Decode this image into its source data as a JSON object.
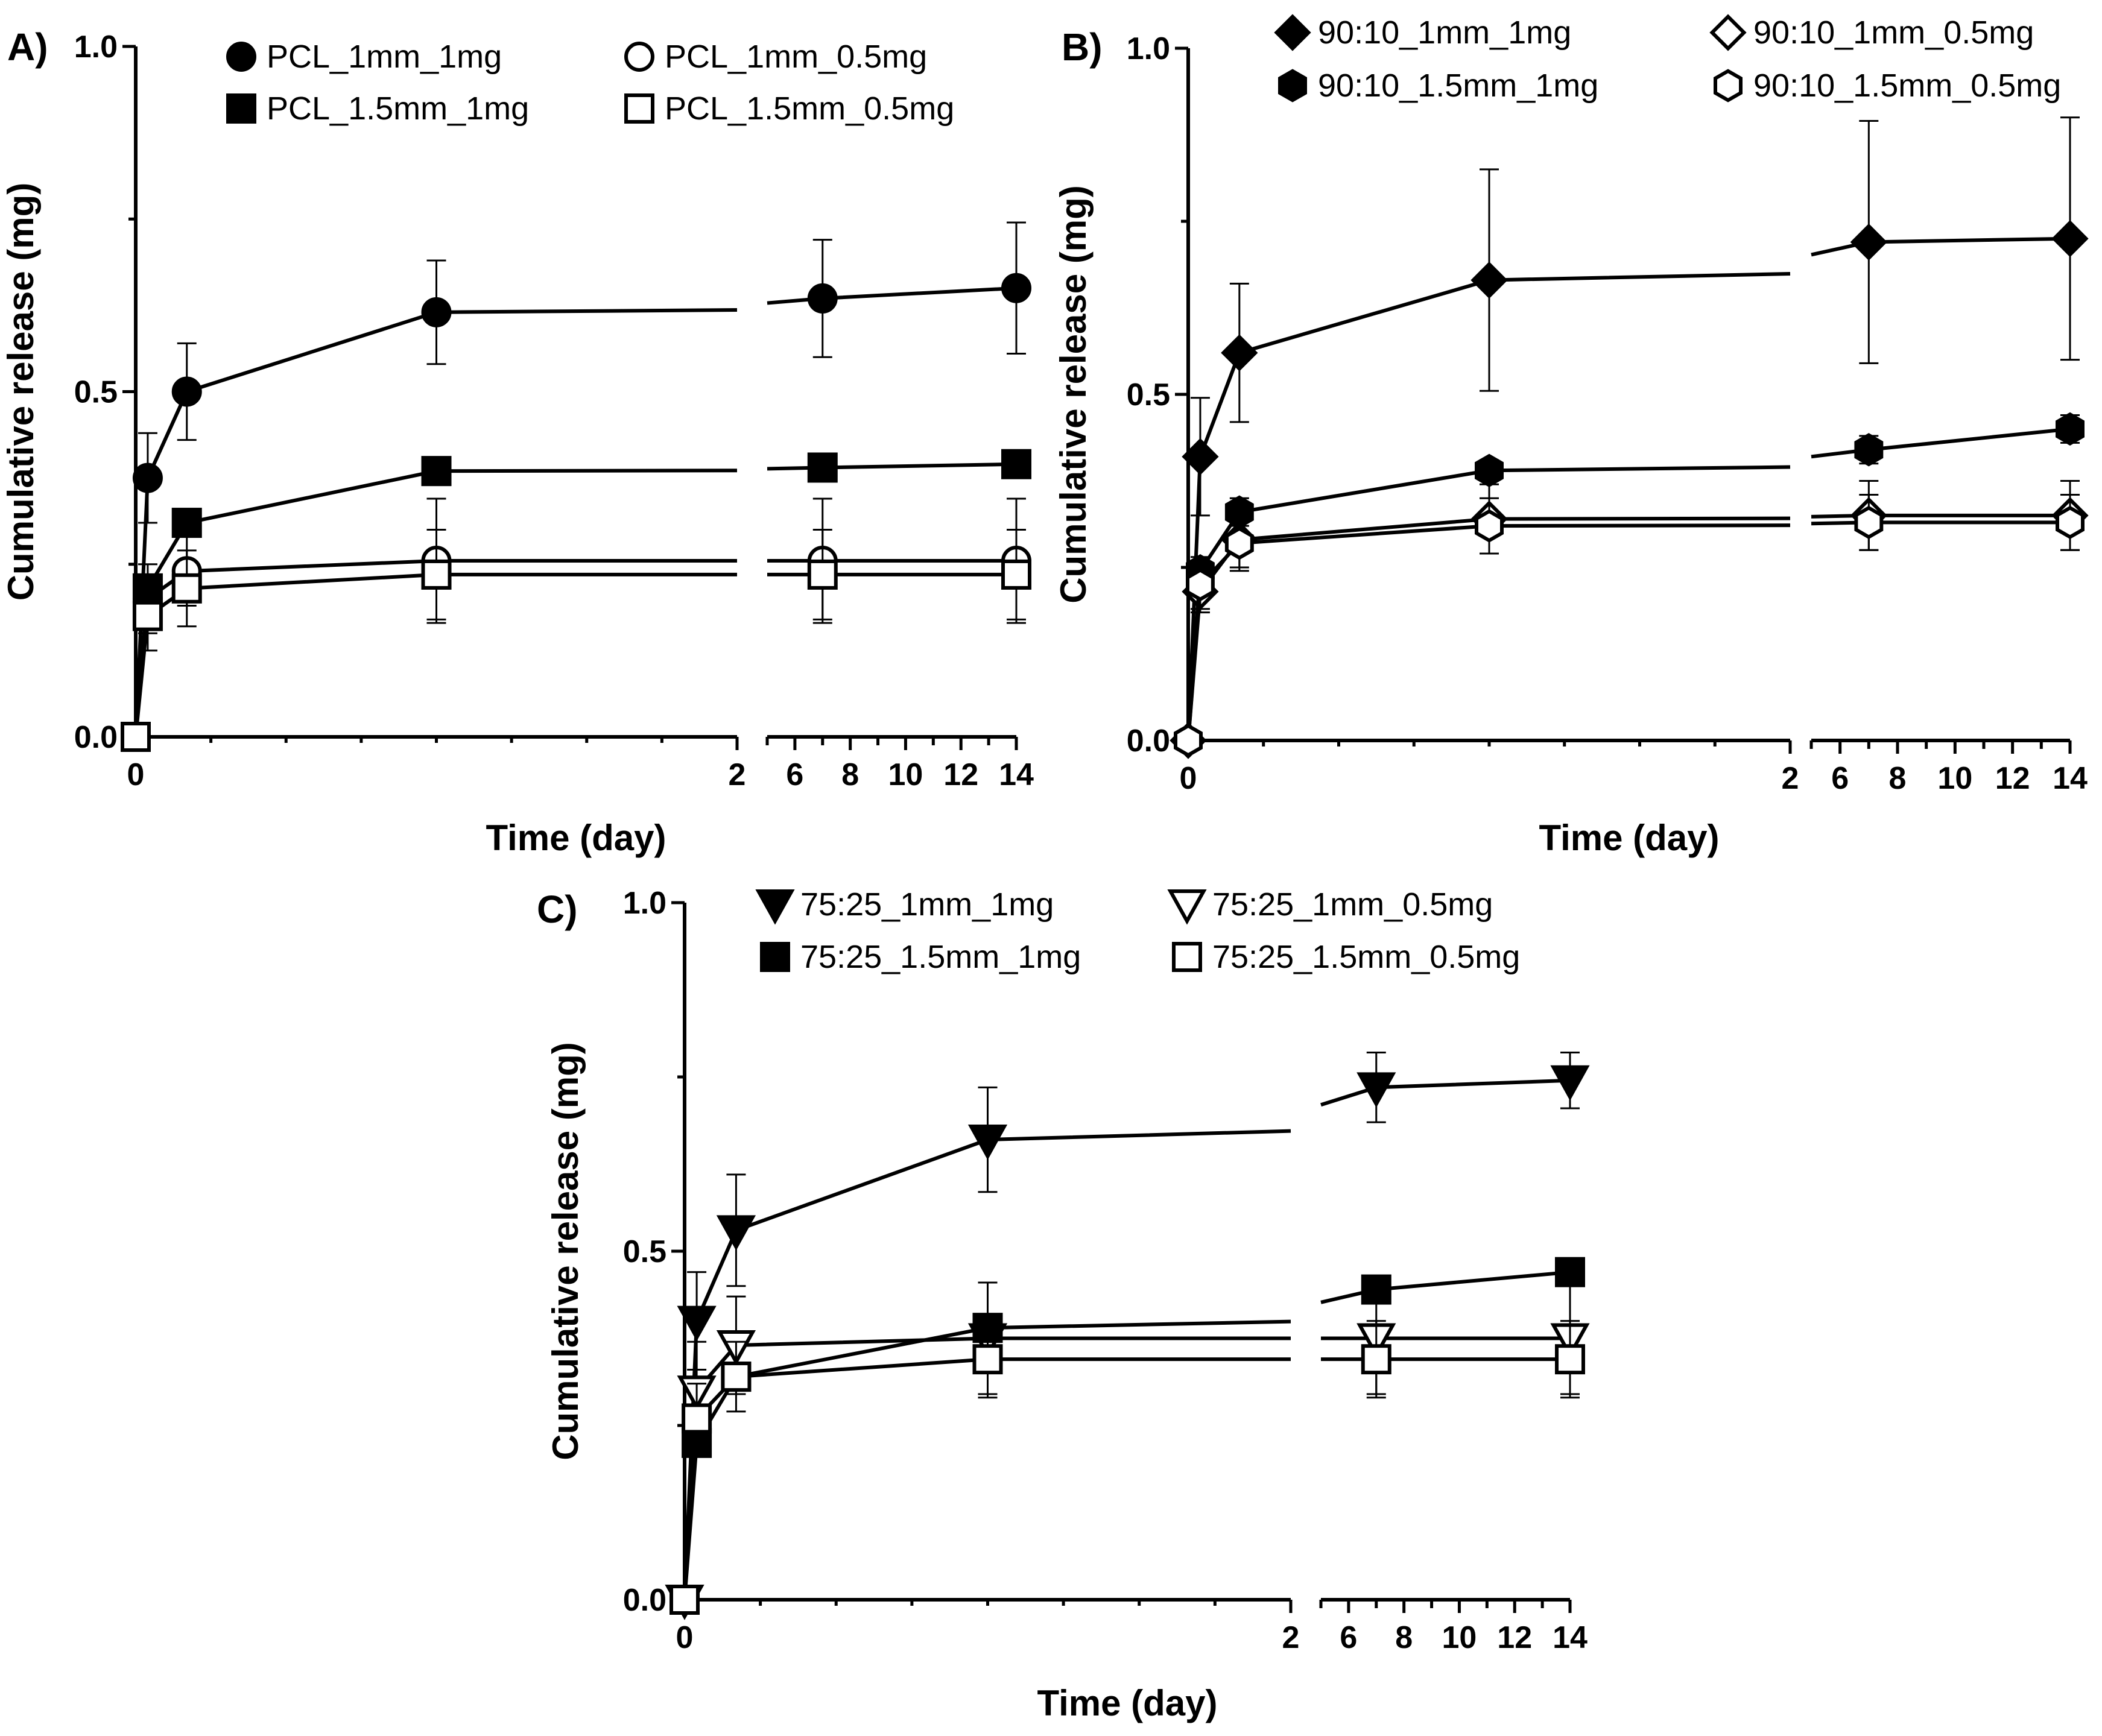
{
  "chart_data": [
    {
      "type": "line",
      "panel_label": "A)",
      "xlabel": "Time (day)",
      "ylabel": "Cumulative release (mg)",
      "ylim": [
        0,
        1
      ],
      "y_ticks": [
        "0.0",
        "0.5",
        "1.0"
      ],
      "x_ticks_left": [
        "0",
        "2"
      ],
      "x_ticks_right": [
        "6",
        "8",
        "10",
        "12",
        "14"
      ],
      "x_segments": [
        [
          0,
          2
        ],
        [
          5,
          14
        ]
      ],
      "legend": "top",
      "series": [
        {
          "name": "PCL_1mm_1mg",
          "marker": "circle",
          "filled": true,
          "x": [
            0,
            0.04,
            0.17,
            1,
            7,
            14
          ],
          "y": [
            0,
            0.375,
            0.5,
            0.615,
            0.635,
            0.65
          ],
          "err": [
            0,
            0.065,
            0.07,
            0.075,
            0.085,
            0.095
          ]
        },
        {
          "name": "PCL_1mm_0.5mg",
          "marker": "circle",
          "filled": false,
          "x": [
            0,
            0.04,
            0.17,
            1,
            7,
            14
          ],
          "y": [
            0,
            0.2,
            0.24,
            0.255,
            0.255,
            0.255
          ],
          "err": [
            0,
            0.05,
            0.05,
            0.09,
            0.09,
            0.09
          ]
        },
        {
          "name": "PCL_1.5mm_1mg",
          "marker": "square",
          "filled": true,
          "x": [
            0,
            0.04,
            0.17,
            1,
            7,
            14
          ],
          "y": [
            0,
            0.215,
            0.31,
            0.385,
            0.39,
            0.395
          ],
          "err": [
            0,
            0.0,
            0.0,
            0.0,
            0.0,
            0.0
          ]
        },
        {
          "name": "PCL_1.5mm_0.5mg",
          "marker": "square",
          "filled": false,
          "x": [
            0,
            0.04,
            0.17,
            1,
            7,
            14
          ],
          "y": [
            0,
            0.175,
            0.215,
            0.235,
            0.235,
            0.235
          ],
          "err": [
            0,
            0.05,
            0.055,
            0.065,
            0.065,
            0.065
          ]
        }
      ]
    },
    {
      "type": "line",
      "panel_label": "B)",
      "xlabel": "Time (day)",
      "ylabel": "Cumulative release (mg)",
      "ylim": [
        0,
        1
      ],
      "y_ticks": [
        "0.0",
        "0.5",
        "1.0"
      ],
      "x_ticks_left": [
        "0",
        "2"
      ],
      "x_ticks_right": [
        "6",
        "8",
        "10",
        "12",
        "14"
      ],
      "x_segments": [
        [
          0,
          2
        ],
        [
          5,
          14
        ]
      ],
      "legend": "top",
      "series": [
        {
          "name": "90:10_1mm_1mg",
          "marker": "diamond",
          "filled": true,
          "x": [
            0,
            0.04,
            0.17,
            1,
            7,
            14
          ],
          "y": [
            0,
            0.41,
            0.56,
            0.665,
            0.72,
            0.725
          ],
          "err": [
            0,
            0.085,
            0.1,
            0.16,
            0.175,
            0.175
          ]
        },
        {
          "name": "90:10_1mm_0.5mg",
          "marker": "diamond",
          "filled": false,
          "x": [
            0,
            0.04,
            0.17,
            1,
            7,
            14
          ],
          "y": [
            0,
            0.215,
            0.29,
            0.32,
            0.325,
            0.325
          ],
          "err": [
            0,
            0.03,
            0.04,
            0.05,
            0.05,
            0.05
          ]
        },
        {
          "name": "90:10_1.5mm_1mg",
          "marker": "hexagon",
          "filled": true,
          "x": [
            0,
            0.04,
            0.17,
            1,
            7,
            14
          ],
          "y": [
            0,
            0.245,
            0.33,
            0.39,
            0.42,
            0.45
          ],
          "err": [
            0,
            0.02,
            0.02,
            0.015,
            0.02,
            0.02
          ]
        },
        {
          "name": "90:10_1.5mm_0.5mg",
          "marker": "hexagon",
          "filled": false,
          "x": [
            0,
            0.04,
            0.17,
            1,
            7,
            14
          ],
          "y": [
            0,
            0.225,
            0.285,
            0.31,
            0.315,
            0.315
          ],
          "err": [
            0,
            0.035,
            0.04,
            0.04,
            0.04,
            0.04
          ]
        }
      ]
    },
    {
      "type": "line",
      "panel_label": "C)",
      "xlabel": "Time (day)",
      "ylabel": "Cumulative release (mg)",
      "ylim": [
        0,
        1
      ],
      "y_ticks": [
        "0.0",
        "0.5",
        "1.0"
      ],
      "x_ticks_left": [
        "0",
        "2"
      ],
      "x_ticks_right": [
        "6",
        "8",
        "10",
        "12",
        "14"
      ],
      "x_segments": [
        [
          0,
          2
        ],
        [
          5,
          14
        ]
      ],
      "legend": "top",
      "series": [
        {
          "name": "75:25_1mm_1mg",
          "marker": "triangle-down",
          "filled": true,
          "x": [
            0,
            0.04,
            0.17,
            1,
            7,
            14
          ],
          "y": [
            0,
            0.4,
            0.53,
            0.66,
            0.735,
            0.745
          ],
          "err": [
            0,
            0.07,
            0.08,
            0.075,
            0.05,
            0.04
          ]
        },
        {
          "name": "75:25_1mm_0.5mg",
          "marker": "triangle-down",
          "filled": false,
          "x": [
            0,
            0.04,
            0.17,
            1,
            7,
            14
          ],
          "y": [
            0,
            0.3,
            0.365,
            0.375,
            0.375,
            0.375
          ],
          "err": [
            0,
            0.07,
            0.07,
            0.08,
            0.08,
            0.08
          ]
        },
        {
          "name": "75:25_1.5mm_1mg",
          "marker": "square",
          "filled": true,
          "x": [
            0,
            0.04,
            0.17,
            1,
            7,
            14
          ],
          "y": [
            0,
            0.225,
            0.32,
            0.39,
            0.445,
            0.47
          ],
          "err": [
            0,
            0.0,
            0.0,
            0.065,
            0.0,
            0.0
          ]
        },
        {
          "name": "75:25_1.5mm_0.5mg",
          "marker": "square",
          "filled": false,
          "x": [
            0,
            0.04,
            0.17,
            1,
            7,
            14
          ],
          "y": [
            0,
            0.26,
            0.32,
            0.345,
            0.345,
            0.345
          ],
          "err": [
            0,
            0.05,
            0.05,
            0.055,
            0.055,
            0.055
          ]
        }
      ]
    }
  ]
}
